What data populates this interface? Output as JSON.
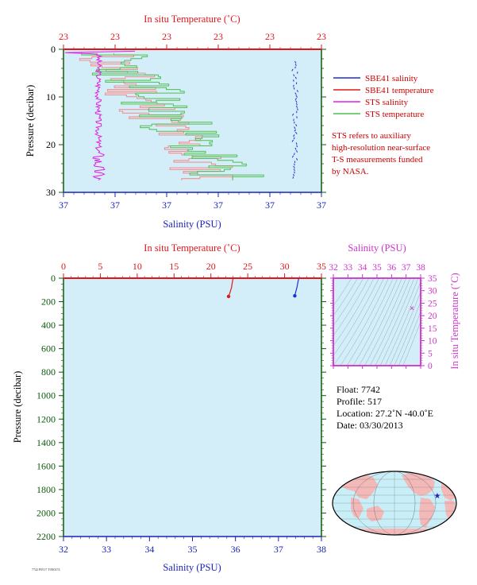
{
  "colors": {
    "plot_bg": "#d3eef8",
    "temp_axis": "#e0161b",
    "sal_axis": "#1b22b8",
    "pressure_axis": "#0c5a0c",
    "sbe_sal": "#1d2fd6",
    "sbe_temp": "#e01818",
    "sts_sal": "#e020e0",
    "sts_temp": "#4fbf4f",
    "sts_temp_salmon": "#f29090",
    "note_text": "#cc0000",
    "ts_axis": "#cc33cc",
    "map_land": "#f3b8b8",
    "map_ocean": "#c8eef8",
    "float_marker": "#1b22b8"
  },
  "chart_data": [
    {
      "id": "top",
      "type": "line",
      "title": "In situ Temperature (˚C)",
      "top_tick_labels": [
        "23",
        "23",
        "23",
        "23",
        "23",
        "23"
      ],
      "xlabel": "Salinity (PSU)",
      "bottom_tick_labels": [
        "37",
        "37",
        "37",
        "37",
        "37",
        "37"
      ],
      "ylabel": "Pressure (decibar)",
      "ylim": [
        0,
        30
      ],
      "y_ticks": [
        0,
        10,
        20,
        30
      ],
      "legend": [
        {
          "label": "SBE41 salinity",
          "color": "#1d2fd6"
        },
        {
          "label": "SBE41 temperature",
          "color": "#e01818"
        },
        {
          "label": "STS salinity",
          "color": "#e020e0"
        },
        {
          "label": "STS temperature",
          "color": "#4fbf4f"
        }
      ],
      "note_lines": [
        "STS refers to auxiliary",
        "high-resolution near-surface",
        "T-S measurements funded",
        "by NASA."
      ],
      "series": [
        {
          "name": "STS temperature",
          "kind": "sts_temp"
        },
        {
          "name": "STS salinity",
          "kind": "sts_sal"
        },
        {
          "name": "SBE41 salinity",
          "kind": "sbe_sal"
        }
      ]
    },
    {
      "id": "main",
      "type": "line",
      "title": "In situ Temperature (˚C)",
      "xlim_temp": [
        0,
        35
      ],
      "top_ticks": [
        0,
        5,
        10,
        15,
        20,
        25,
        30,
        35
      ],
      "xlabel": "Salinity (PSU)",
      "xlim_sal": [
        32,
        38
      ],
      "bottom_ticks": [
        32,
        33,
        34,
        35,
        36,
        37,
        38
      ],
      "ylabel": "Pressure (decibar)",
      "ylim": [
        2200,
        0
      ],
      "y_ticks": [
        0,
        200,
        400,
        600,
        800,
        1000,
        1200,
        1400,
        1600,
        1800,
        2000,
        2200
      ],
      "series": [
        {
          "name": "SBE41 temperature",
          "points": [
            [
              23.0,
              5
            ],
            [
              22.9,
              40
            ],
            [
              22.8,
              80
            ],
            [
              22.6,
              120
            ],
            [
              22.4,
              155
            ]
          ],
          "end_marker": [
            22.4,
            155
          ]
        },
        {
          "name": "SBE41 salinity",
          "points": [
            [
              37.47,
              5
            ],
            [
              37.45,
              40
            ],
            [
              37.43,
              80
            ],
            [
              37.4,
              120
            ],
            [
              37.38,
              150
            ]
          ],
          "end_marker": [
            37.38,
            150
          ]
        }
      ]
    },
    {
      "id": "ts",
      "type": "scatter",
      "title": "Salinity (PSU)",
      "xlim": [
        32,
        38
      ],
      "x_ticks": [
        32,
        33,
        34,
        35,
        36,
        37,
        38
      ],
      "ylabel": "In situ Temperature (˚C)",
      "ylim": [
        0,
        35
      ],
      "y_ticks": [
        0,
        5,
        10,
        15,
        20,
        25,
        30,
        35
      ],
      "points": [
        [
          37.4,
          23.0
        ]
      ]
    }
  ],
  "float_info": {
    "float": "Float:  7742",
    "profile": "Profile:  517",
    "location": "Location:  27.2˚N  -40.0˚E",
    "date": "Date:  03/30/2013"
  },
  "footer_small": "7742 P0517 T0N0274"
}
